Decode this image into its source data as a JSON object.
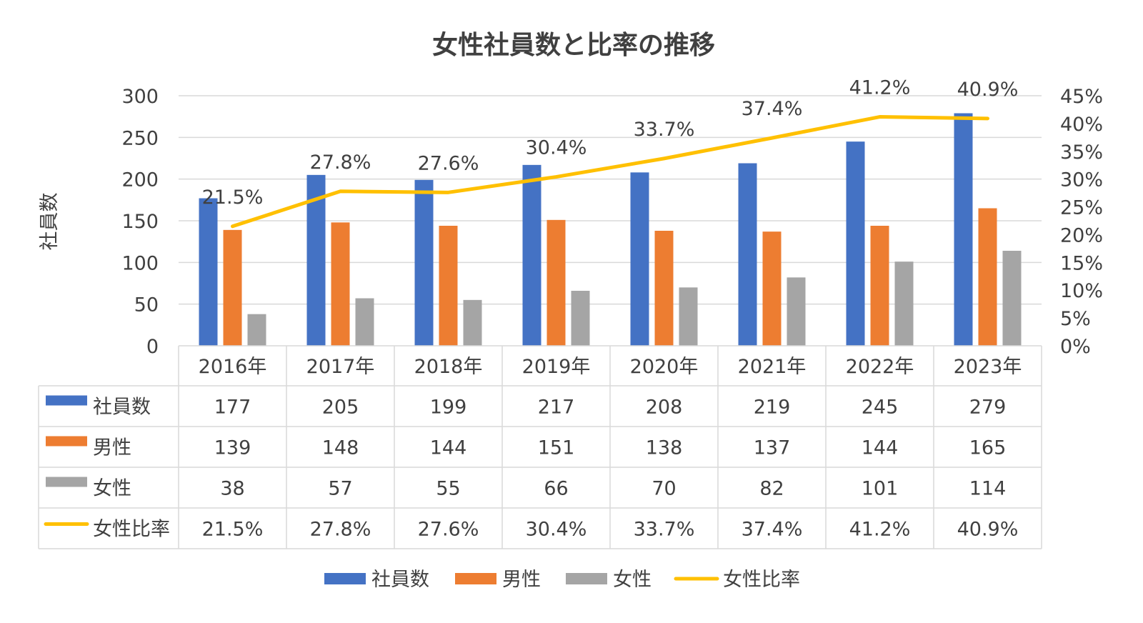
{
  "chart_data": {
    "type": "bar",
    "title": "女性社員数と比率の推移",
    "categories": [
      "2016年",
      "2017年",
      "2018年",
      "2019年",
      "2020年",
      "2021年",
      "2022年",
      "2023年"
    ],
    "ylabel": "社員数",
    "ylim": [
      0,
      300
    ],
    "yticks": [
      "0",
      "50",
      "100",
      "150",
      "200",
      "250",
      "300"
    ],
    "y2lim": [
      0,
      45
    ],
    "y2ticks": [
      "0%",
      "5%",
      "10%",
      "15%",
      "20%",
      "25%",
      "30%",
      "35%",
      "40%",
      "45%"
    ],
    "grid": true,
    "legend_position": "bottom",
    "data_table": true,
    "series": [
      {
        "name": "社員数",
        "type": "bar",
        "axis": "left",
        "color": "#4472C4",
        "values": [
          177,
          205,
          199,
          217,
          208,
          219,
          245,
          279
        ],
        "labels": [
          "177",
          "205",
          "199",
          "217",
          "208",
          "219",
          "245",
          "279"
        ]
      },
      {
        "name": "男性",
        "type": "bar",
        "axis": "left",
        "color": "#ED7D31",
        "values": [
          139,
          148,
          144,
          151,
          138,
          137,
          144,
          165
        ],
        "labels": [
          "139",
          "148",
          "144",
          "151",
          "138",
          "137",
          "144",
          "165"
        ]
      },
      {
        "name": "女性",
        "type": "bar",
        "axis": "left",
        "color": "#A5A5A5",
        "values": [
          38,
          57,
          55,
          66,
          70,
          82,
          101,
          114
        ],
        "labels": [
          "38",
          "57",
          "55",
          "66",
          "70",
          "82",
          "101",
          "114"
        ]
      },
      {
        "name": "女性比率",
        "type": "line",
        "axis": "right",
        "color": "#FFC000",
        "values": [
          21.5,
          27.8,
          27.6,
          30.4,
          33.7,
          37.4,
          41.2,
          40.9
        ],
        "labels": [
          "21.5%",
          "27.8%",
          "27.6%",
          "30.4%",
          "33.7%",
          "37.4%",
          "41.2%",
          "40.9%"
        ]
      }
    ]
  }
}
